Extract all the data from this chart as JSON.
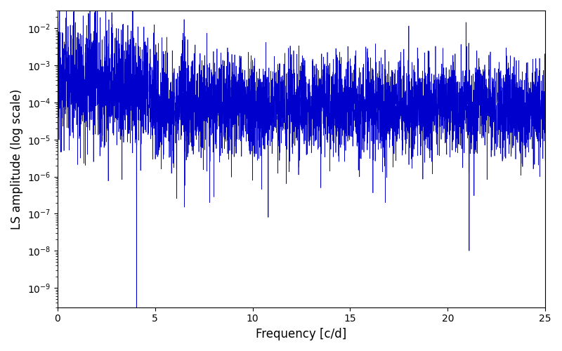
{
  "title": "",
  "xlabel": "Frequency [c/d]",
  "ylabel": "LS amplitude (log scale)",
  "xlim": [
    0,
    25
  ],
  "ylim": [
    3e-10,
    0.03
  ],
  "yscale": "log",
  "line_color": "#0000cc",
  "line_width": 0.5,
  "background_color": "#ffffff",
  "figsize": [
    8.0,
    5.0
  ],
  "dpi": 100,
  "seed": 12345,
  "n_points": 5000,
  "freq_max": 25.0
}
